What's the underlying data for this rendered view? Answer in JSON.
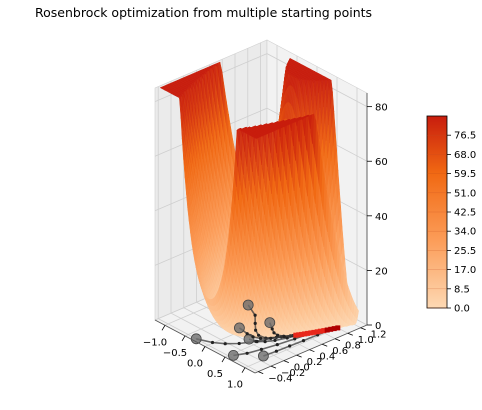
{
  "chart_data": {
    "type": "surface3d",
    "title": "Rosenbrock optimization from multiple starting points",
    "xlabel": "",
    "ylabel": "",
    "zlabel": "",
    "x_ticks": [
      "−1.0",
      "−0.5",
      "0.0",
      "0.5",
      "1.0"
    ],
    "y_ticks": [
      "−0.4",
      "−0.2",
      "0.0",
      "0.2",
      "0.4",
      "0.6",
      "0.8",
      "1.0",
      "1.2"
    ],
    "z_ticks": [
      "0",
      "20",
      "40",
      "60",
      "80"
    ],
    "xlim": [
      -1.25,
      1.25
    ],
    "ylim": [
      -0.45,
      1.3
    ],
    "zlim": [
      0,
      85
    ],
    "function": "(1 - x)^2 + 100 * (y - x^2)^2",
    "colormap": "OrRd",
    "colorbar": {
      "ticks": [
        "0.0",
        "8.5",
        "17.0",
        "25.5",
        "34.0",
        "42.5",
        "51.0",
        "59.5",
        "68.0",
        "76.5"
      ],
      "min": 0,
      "max": 85
    },
    "starting_points": [
      {
        "x": -0.3,
        "y": -0.4,
        "z": 0
      },
      {
        "x": 0.55,
        "y": -0.35,
        "z": 0
      },
      {
        "x": 0.9,
        "y": -0.1,
        "z": 0
      },
      {
        "x": -0.6,
        "y": 0.6,
        "z": 0
      },
      {
        "x": 0.3,
        "y": 0.05,
        "z": 0
      },
      {
        "x": 0.1,
        "y": 0.5,
        "z": 0
      },
      {
        "x": -0.1,
        "y": 0.15,
        "z": 0
      }
    ],
    "minimum": {
      "x": 1.0,
      "y": 1.0,
      "z": 0
    },
    "grid": true
  }
}
